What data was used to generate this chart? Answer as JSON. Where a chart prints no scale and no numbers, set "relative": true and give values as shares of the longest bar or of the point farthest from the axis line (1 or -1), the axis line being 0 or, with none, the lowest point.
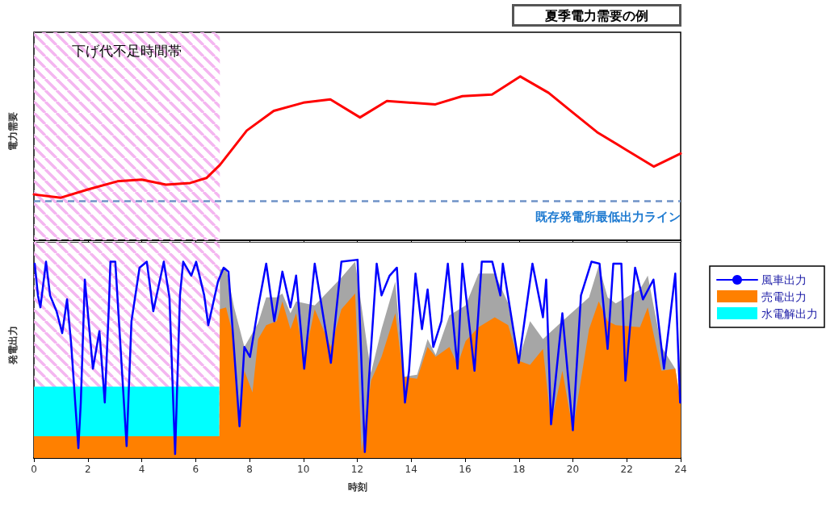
{
  "chart_data": [
    {
      "type": "line",
      "title": "夏季電力需要の例",
      "ylabel": "電力需要",
      "relative": true,
      "legend": false,
      "tick_labels": false,
      "line_style": "solid",
      "xlim": [
        0,
        24
      ],
      "xticks": [
        0,
        2,
        4,
        6,
        8,
        10,
        12,
        14,
        16,
        18,
        20,
        22,
        24
      ],
      "x": [
        0,
        1.0,
        2.0,
        3.1,
        4.0,
        4.9,
        5.8,
        6.4,
        6.9,
        7.9,
        8.9,
        10.0,
        11.0,
        12.1,
        13.1,
        14.9,
        15.9,
        17.0,
        18.05,
        19.1,
        20.0,
        20.9,
        21.9,
        23.0,
        24
      ],
      "series": [
        {
          "color": "#ff0000",
          "values": [
            0.28,
            0.26,
            0.31,
            0.36,
            0.37,
            0.34,
            0.35,
            0.38,
            0.46,
            0.67,
            0.79,
            0.84,
            0.86,
            0.75,
            0.85,
            0.83,
            0.88,
            0.89,
            1.0,
            0.9,
            0.78,
            0.66,
            0.56,
            0.45,
            0.53
          ]
        }
      ],
      "bands": [
        {
          "axis": "x",
          "from": 0,
          "to": 6.9,
          "label": "下げ代不足時間帯",
          "color": "#f4b6f0"
        }
      ],
      "ref_lines": [
        {
          "axis": "y",
          "value": 0.24,
          "label": "既存発電所最低出力ライン",
          "color": "#6f93c8",
          "line_style": "dashed"
        }
      ]
    },
    {
      "type": "area",
      "xlabel": "時刻",
      "ylabel": "発電出力",
      "relative": true,
      "legend": "right",
      "line_style": "solid",
      "xlim": [
        0,
        24
      ],
      "xticks": [
        0,
        2,
        4,
        6,
        8,
        10,
        12,
        14,
        16,
        18,
        20,
        22,
        24
      ],
      "x": [
        0,
        6.88,
        6.9,
        7.13,
        7.43,
        7.63,
        7.81,
        8.11,
        8.32,
        8.62,
        9.01,
        9.22,
        9.52,
        9.73,
        10.03,
        10.42,
        11.02,
        11.41,
        11.92,
        12.16,
        12.51,
        12.9,
        13.41,
        13.71,
        14.22,
        14.61,
        14.91,
        15.42,
        15.72,
        16.02,
        16.5,
        17.1,
        17.6,
        17.99,
        18.41,
        18.89,
        19.19,
        19.61,
        20.0,
        20.6,
        20.96,
        21.29,
        21.59,
        22.49,
        22.78,
        23.29,
        23.8,
        24
      ],
      "series": [
        {
          "name": "風車出力",
          "type": "line",
          "color": "#0000ff",
          "x": [
            0.03,
            0.15,
            0.24,
            0.45,
            0.6,
            0.84,
            1.05,
            1.23,
            1.38,
            1.65,
            1.74,
            1.89,
            2.19,
            2.43,
            2.63,
            2.78,
            2.84,
            3.02,
            3.44,
            3.62,
            3.92,
            4.19,
            4.43,
            4.82,
            5.03,
            5.24,
            5.42,
            5.54,
            5.84,
            6.02,
            6.32,
            6.47,
            6.83,
            7.04,
            7.22,
            7.63,
            7.81,
            8.02,
            8.32,
            8.62,
            8.92,
            9.22,
            9.52,
            9.73,
            10.03,
            10.42,
            11.02,
            11.41,
            12.01,
            12.28,
            12.43,
            12.72,
            12.9,
            13.2,
            13.47,
            13.77,
            13.92,
            14.16,
            14.4,
            14.61,
            14.82,
            15.12,
            15.36,
            15.72,
            15.9,
            16.35,
            16.62,
            17.01,
            17.31,
            17.4,
            17.99,
            18.5,
            18.89,
            19.01,
            19.19,
            19.61,
            20.0,
            20.3,
            20.69,
            20.99,
            21.29,
            21.5,
            21.8,
            21.95,
            22.31,
            22.6,
            22.99,
            23.38,
            23.8,
            23.98
          ],
          "values": [
            0.98,
            0.82,
            0.76,
            0.99,
            0.82,
            0.74,
            0.63,
            0.8,
            0.58,
            0.05,
            0.28,
            0.9,
            0.45,
            0.64,
            0.28,
            0.76,
            0.99,
            0.99,
            0.06,
            0.69,
            0.96,
            0.99,
            0.74,
            0.99,
            0.81,
            0.02,
            0.82,
            0.99,
            0.92,
            0.99,
            0.82,
            0.67,
            0.89,
            0.96,
            0.94,
            0.16,
            0.56,
            0.51,
            0.76,
            0.98,
            0.69,
            0.94,
            0.76,
            0.92,
            0.45,
            0.98,
            0.48,
            0.99,
            1.0,
            0.03,
            0.39,
            0.98,
            0.82,
            0.92,
            0.96,
            0.28,
            0.44,
            0.93,
            0.65,
            0.85,
            0.56,
            0.69,
            0.98,
            0.45,
            0.98,
            0.44,
            0.99,
            0.99,
            0.82,
            0.98,
            0.48,
            0.98,
            0.71,
            0.9,
            0.17,
            0.73,
            0.14,
            0.82,
            0.99,
            0.98,
            0.55,
            0.98,
            0.98,
            0.39,
            0.96,
            0.8,
            0.9,
            0.45,
            0.93,
            0.28
          ]
        },
        {
          "name": "売電出力",
          "color": "#ff8000",
          "values": [
            0.11,
            0.11,
            0.75,
            0.76,
            0.6,
            0.16,
            0.44,
            0.33,
            0.6,
            0.67,
            0.69,
            0.79,
            0.65,
            0.73,
            0.5,
            0.75,
            0.56,
            0.75,
            0.83,
            0.03,
            0.39,
            0.51,
            0.73,
            0.41,
            0.4,
            0.56,
            0.51,
            0.56,
            0.47,
            0.59,
            0.66,
            0.71,
            0.67,
            0.49,
            0.47,
            0.55,
            0.17,
            0.44,
            0.14,
            0.65,
            0.79,
            0.69,
            0.67,
            0.66,
            0.76,
            0.44,
            0.45,
            0.28
          ]
        },
        {
          "name": "水電解出力",
          "color": "#00ffff",
          "values": [
            0.36,
            0.36,
            null,
            null,
            null,
            null,
            null,
            null,
            null,
            null,
            null,
            null,
            null,
            null,
            null,
            null,
            null,
            null,
            null,
            null,
            null,
            null,
            null,
            null,
            null,
            null,
            null,
            null,
            null,
            null,
            null,
            null,
            null,
            null,
            null,
            null,
            null,
            null,
            null,
            null,
            null,
            null,
            null,
            null,
            null,
            null,
            null,
            null
          ]
        },
        {
          "color": "#a6a6a6",
          "values": [
            null,
            null,
            0.95,
            0.96,
            0.76,
            null,
            0.56,
            null,
            0.68,
            0.81,
            0.81,
            0.83,
            0.73,
            0.79,
            null,
            0.77,
            null,
            0.91,
            0.99,
            null,
            0.43,
            0.65,
            0.89,
            0.41,
            0.42,
            0.6,
            0.52,
            0.72,
            null,
            0.77,
            0.93,
            0.93,
            0.78,
            0.49,
            0.69,
            0.6,
            null,
            0.69,
            null,
            0.81,
            0.97,
            0.81,
            0.78,
            0.85,
            0.92,
            0.56,
            0.45,
            0.28
          ]
        }
      ],
      "bands": [
        {
          "axis": "x",
          "from": 0,
          "to": 6.9,
          "color": "#f4b6f0"
        }
      ]
    }
  ]
}
